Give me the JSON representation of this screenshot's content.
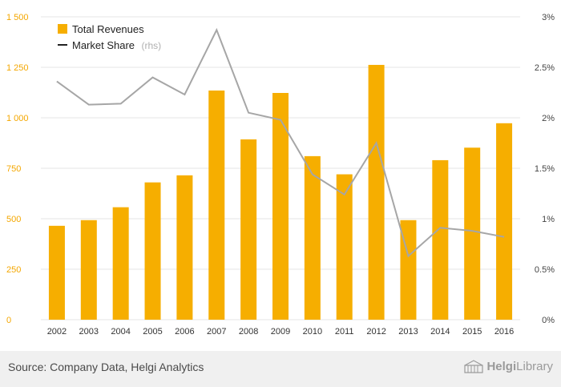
{
  "colors": {
    "bar": "#f6ae00",
    "line": "#a6a6a6",
    "grid": "#e6e6e6",
    "left_ticks": "#f4a700"
  },
  "footer": {
    "source": "Source: Company Data, Helgi Analytics",
    "brand_name": "Helgi",
    "brand_suffix": "Library"
  },
  "chart_data": {
    "type": "bar",
    "categories": [
      "2002",
      "2003",
      "2004",
      "2005",
      "2006",
      "2007",
      "2008",
      "2009",
      "2010",
      "2011",
      "2012",
      "2013",
      "2014",
      "2015",
      "2016"
    ],
    "series": [
      {
        "name": "Total Revenues",
        "type": "bar",
        "axis": "left",
        "values": [
          465,
          493,
          557,
          680,
          715,
          1135,
          893,
          1123,
          810,
          720,
          1262,
          493,
          790,
          852,
          973
        ]
      },
      {
        "name": "Market Share",
        "name_suffix": "(rhs)",
        "type": "line",
        "axis": "right",
        "values": [
          2.36,
          2.13,
          2.14,
          2.4,
          2.23,
          2.87,
          2.05,
          1.98,
          1.44,
          1.24,
          1.75,
          0.63,
          0.91,
          0.88,
          0.82
        ]
      }
    ],
    "y_left": {
      "min": 0,
      "max": 1500,
      "ticks": [
        0,
        250,
        500,
        750,
        1000,
        1250,
        1500
      ],
      "tick_labels": [
        "0",
        "250",
        "500",
        "750",
        "1 000",
        "1 250",
        "1 500"
      ]
    },
    "y_right": {
      "min": 0,
      "max": 3,
      "ticks": [
        0,
        0.5,
        1,
        1.5,
        2,
        2.5,
        3
      ],
      "tick_labels": [
        "0%",
        "0.5%",
        "1%",
        "1.5%",
        "2%",
        "2.5%",
        "3%"
      ]
    },
    "grid": true,
    "legend_position": "top-left"
  }
}
